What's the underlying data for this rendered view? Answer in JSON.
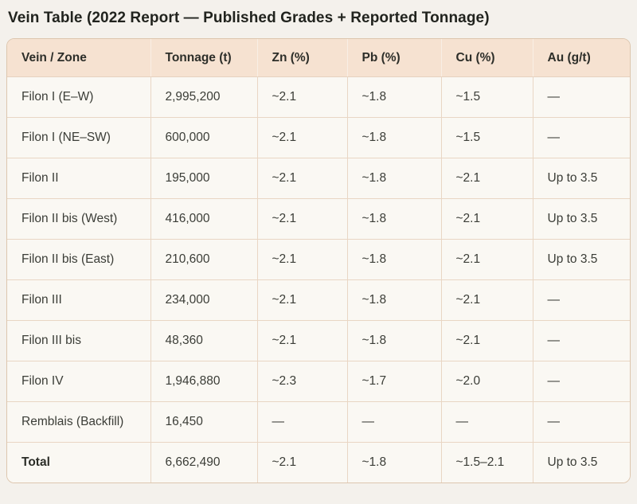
{
  "title": "Vein Table (2022 Report — Published Grades + Reported Tonnage)",
  "table": {
    "columns": [
      {
        "label": "Vein / Zone"
      },
      {
        "label": "Tonnage (t)"
      },
      {
        "label": "Zn (%)"
      },
      {
        "label": "Pb (%)"
      },
      {
        "label": "Cu (%)"
      },
      {
        "label": "Au (g/t)"
      }
    ],
    "rows": [
      {
        "vein": "Filon I (E–W)",
        "tonnage": "2,995,200",
        "zn": "~2.1",
        "pb": "~1.8",
        "cu": "~1.5",
        "au": "—"
      },
      {
        "vein": "Filon I (NE–SW)",
        "tonnage": "600,000",
        "zn": "~2.1",
        "pb": "~1.8",
        "cu": "~1.5",
        "au": "—"
      },
      {
        "vein": "Filon II",
        "tonnage": "195,000",
        "zn": "~2.1",
        "pb": "~1.8",
        "cu": "~2.1",
        "au": "Up to 3.5"
      },
      {
        "vein": "Filon II bis (West)",
        "tonnage": "416,000",
        "zn": "~2.1",
        "pb": "~1.8",
        "cu": "~2.1",
        "au": "Up to 3.5"
      },
      {
        "vein": "Filon II bis (East)",
        "tonnage": "210,600",
        "zn": "~2.1",
        "pb": "~1.8",
        "cu": "~2.1",
        "au": "Up to 3.5"
      },
      {
        "vein": "Filon III",
        "tonnage": "234,000",
        "zn": "~2.1",
        "pb": "~1.8",
        "cu": "~2.1",
        "au": "—"
      },
      {
        "vein": "Filon III bis",
        "tonnage": "48,360",
        "zn": "~2.1",
        "pb": "~1.8",
        "cu": "~2.1",
        "au": "—"
      },
      {
        "vein": "Filon IV",
        "tonnage": "1,946,880",
        "zn": "~2.3",
        "pb": "~1.7",
        "cu": "~2.0",
        "au": "—"
      },
      {
        "vein": "Remblais (Backfill)",
        "tonnage": "16,450",
        "zn": "—",
        "pb": "—",
        "cu": "—",
        "au": "—"
      },
      {
        "vein": "Total",
        "tonnage": "6,662,490",
        "zn": "~2.1",
        "pb": "~1.8",
        "cu": "~1.5–2.1",
        "au": "Up to 3.5"
      }
    ]
  },
  "colors": {
    "page_background": "#f4f1ec",
    "header_background": "#f6e2d1",
    "row_background": "#faf8f3",
    "cell_border": "#e9d6c4",
    "outer_border": "#ddc6ae",
    "title_text": "#21231e",
    "body_text": "#3b3d37"
  }
}
